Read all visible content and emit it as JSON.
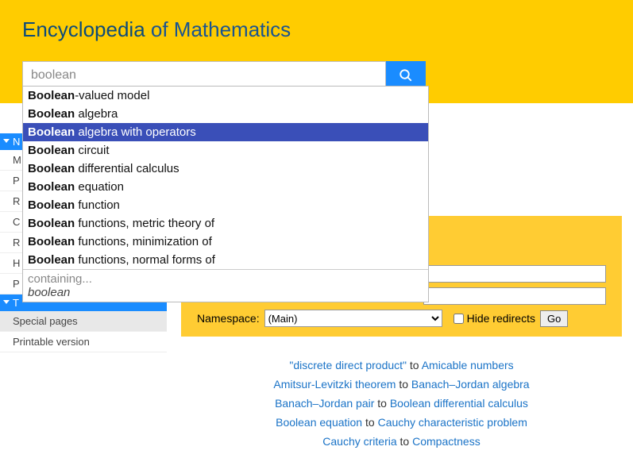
{
  "header": {
    "title_bold": "Encyclopedia",
    "title_rest": " of Mathematics"
  },
  "search": {
    "query": "boolean",
    "placeholder": ""
  },
  "autocomplete": {
    "containing_label": "containing...",
    "query_echo": "boolean",
    "items": [
      {
        "bold": "Boolean",
        "rest": "-valued model",
        "highlighted": false
      },
      {
        "bold": "Boolean",
        "rest": " algebra",
        "highlighted": false
      },
      {
        "bold": "Boolean",
        "rest": " algebra with operators",
        "highlighted": true
      },
      {
        "bold": "Boolean",
        "rest": " circuit",
        "highlighted": false
      },
      {
        "bold": "Boolean",
        "rest": " differential calculus",
        "highlighted": false
      },
      {
        "bold": "Boolean",
        "rest": " equation",
        "highlighted": false
      },
      {
        "bold": "Boolean",
        "rest": " function",
        "highlighted": false
      },
      {
        "bold": "Boolean",
        "rest": " functions, metric theory of",
        "highlighted": false
      },
      {
        "bold": "Boolean",
        "rest": " functions, minimization of",
        "highlighted": false
      },
      {
        "bold": "Boolean",
        "rest": " functions, normal forms of",
        "highlighted": false
      }
    ]
  },
  "sidebar": {
    "nav_label": "N",
    "items": [
      "M",
      "P",
      "R",
      "C",
      "R",
      "H",
      "P"
    ],
    "tools_label": "T",
    "special_pages": "Special pages",
    "printable": "Printable version"
  },
  "form": {
    "namespace_label": "Namespace:",
    "namespace_value": "(Main)",
    "hide_redirects_label": "Hide redirects",
    "go_label": "Go"
  },
  "index_links": [
    {
      "from": "\"discrete direct product\"",
      "to_word": "to",
      "to": "Amicable numbers"
    },
    {
      "from": "Amitsur-Levitzki theorem",
      "to_word": "to",
      "to": "Banach–Jordan algebra"
    },
    {
      "from": "Banach–Jordan pair",
      "to_word": "to",
      "to": "Boolean differential calculus"
    },
    {
      "from": "Boolean equation",
      "to_word": "to",
      "to": "Cauchy characteristic problem"
    },
    {
      "from": "Cauchy criteria",
      "to_word": "to",
      "to": "Compactness"
    }
  ],
  "colors": {
    "header_bg": "#ffcc00",
    "accent": "#1a8cff",
    "ac_highlight": "#3a4fb8",
    "link": "#1a73c7"
  }
}
